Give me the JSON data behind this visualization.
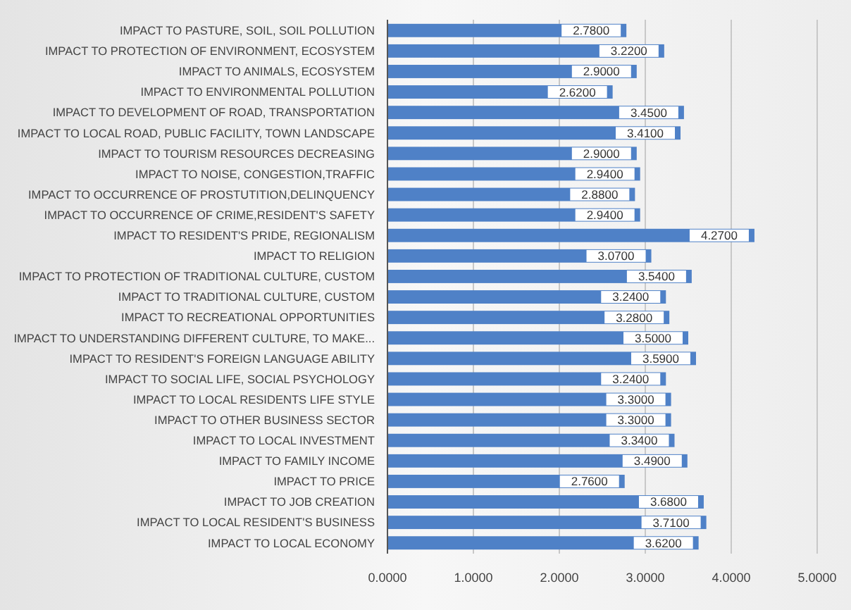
{
  "chart_data": {
    "type": "bar",
    "orientation": "horizontal",
    "categories": [
      "IMPACT TO PASTURE, SOIL,  SOIL POLLUTION",
      "IMPACT TO PROTECTION OF ENVIRONMENT, ECOSYSTEM",
      "IMPACT TO ANIMALS, ECOSYSTEM",
      "IMPACT TO ENVIRONMENTAL POLLUTION",
      "IMPACT TO DEVELOPMENT OF ROAD, TRANSPORTATION",
      "IMPACT TO LOCAL ROAD, PUBLIC FACILITY, TOWN LANDSCAPE",
      "IMPACT TO TOURISM RESOURCES DECREASING",
      "IMPACT TO NOISE, CONGESTION,TRAFFIC",
      "IMPACT TO OCCURRENCE OF PROSTUTITION,DELINQUENCY",
      "IMPACT TO  OCCURRENCE OF CRIME,RESIDENT'S SAFETY",
      "IMPACT TO RESIDENT'S PRIDE, REGIONALISM",
      "IMPACT TO RELIGION",
      "IMPACT TO PROTECTION OF TRADITIONAL CULTURE, CUSTOM",
      "IMPACT TO TRADITIONAL CULTURE, CUSTOM",
      "IMPACT TO RECREATIONAL OPPORTUNITIES",
      "IMPACT TO UNDERSTANDING DIFFERENT CULTURE, TO MAKE...",
      "IMPACT TO RESIDENT'S FOREIGN LANGUAGE ABILITY",
      "IMPACT TO SOCIAL LIFE, SOCIAL PSYCHOLOGY",
      "IMPACT TO LOCAL RESIDENTS LIFE STYLE",
      "IMPACT TO OTHER BUSINESS SECTOR",
      "IMPACT TO LOCAL INVESTMENT",
      "IMPACT TO FAMILY INCOME",
      "IMPACT TO PRICE",
      "IMPACT TO JOB CREATION",
      "IMPACT TO LOCAL RESIDENT'S BUSINESS",
      "IMPACT TO LOCAL ECONOMY"
    ],
    "values": [
      2.78,
      3.22,
      2.9,
      2.62,
      3.45,
      3.41,
      2.9,
      2.94,
      2.88,
      2.94,
      4.27,
      3.07,
      3.54,
      3.24,
      3.28,
      3.5,
      3.59,
      3.24,
      3.3,
      3.3,
      3.34,
      3.49,
      2.76,
      3.68,
      3.71,
      3.62
    ],
    "value_labels": [
      "2.7800",
      "3.2200",
      "2.9000",
      "2.6200",
      "3.4500",
      "3.4100",
      "2.9000",
      "2.9400",
      "2.8800",
      "2.9400",
      "4.2700",
      "3.0700",
      "3.5400",
      "3.2400",
      "3.2800",
      "3.5000",
      "3.5900",
      "3.2400",
      "3.3000",
      "3.3000",
      "3.3400",
      "3.4900",
      "2.7600",
      "3.6800",
      "3.7100",
      "3.6200"
    ],
    "color": "#4f81c7",
    "xlim": [
      0,
      5
    ],
    "xticks": [
      {
        "value": 0,
        "label": "0.0000"
      },
      {
        "value": 1,
        "label": "1.0000"
      },
      {
        "value": 2,
        "label": "2.0000"
      },
      {
        "value": 3,
        "label": "3.0000"
      },
      {
        "value": 4,
        "label": "4.0000"
      },
      {
        "value": 5,
        "label": "5.0000"
      }
    ],
    "grid": "x"
  }
}
